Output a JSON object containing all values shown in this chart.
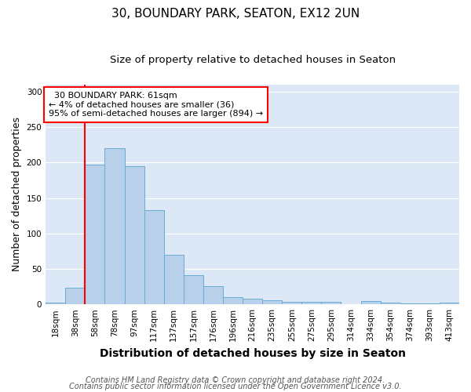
{
  "title1": "30, BOUNDARY PARK, SEATON, EX12 2UN",
  "title2": "Size of property relative to detached houses in Seaton",
  "xlabel": "Distribution of detached houses by size in Seaton",
  "ylabel": "Number of detached properties",
  "bin_labels": [
    "18sqm",
    "38sqm",
    "58sqm",
    "78sqm",
    "97sqm",
    "117sqm",
    "137sqm",
    "157sqm",
    "176sqm",
    "196sqm",
    "216sqm",
    "235sqm",
    "255sqm",
    "275sqm",
    "295sqm",
    "314sqm",
    "334sqm",
    "354sqm",
    "374sqm",
    "393sqm",
    "413sqm"
  ],
  "bar_heights": [
    2,
    23,
    197,
    220,
    195,
    133,
    70,
    41,
    26,
    10,
    8,
    6,
    4,
    4,
    3,
    0,
    5,
    2,
    1,
    1,
    2
  ],
  "bar_color": "#b8d0ea",
  "bar_edge_color": "#6aaad4",
  "vline_color": "red",
  "vline_x_index": 2,
  "annotation_text": "  30 BOUNDARY PARK: 61sqm\n← 4% of detached houses are smaller (36)\n95% of semi-detached houses are larger (894) →",
  "annotation_box_color": "white",
  "annotation_box_edge_color": "red",
  "ylim": [
    0,
    310
  ],
  "yticks": [
    0,
    50,
    100,
    150,
    200,
    250,
    300
  ],
  "footer1": "Contains HM Land Registry data © Crown copyright and database right 2024.",
  "footer2": "Contains public sector information licensed under the Open Government Licence v3.0.",
  "bg_color": "#ffffff",
  "plot_bg_color": "#dce8f5",
  "title1_fontsize": 11,
  "title2_fontsize": 9.5,
  "xlabel_fontsize": 10,
  "ylabel_fontsize": 9,
  "tick_fontsize": 7.5,
  "footer_fontsize": 7
}
